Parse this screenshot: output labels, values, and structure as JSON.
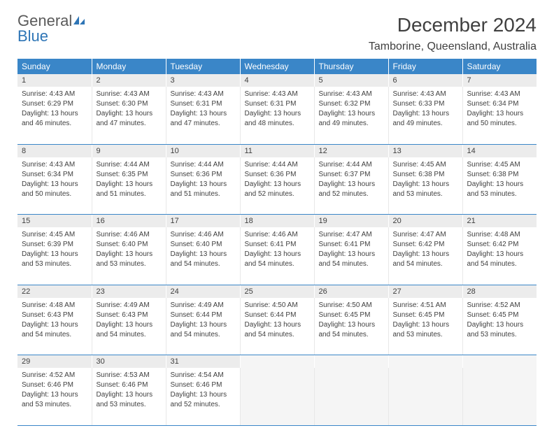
{
  "logo": {
    "general": "General",
    "blue": "Blue"
  },
  "title": "December 2024",
  "location": "Tamborine, Queensland, Australia",
  "day_headers": [
    "Sunday",
    "Monday",
    "Tuesday",
    "Wednesday",
    "Thursday",
    "Friday",
    "Saturday"
  ],
  "colors": {
    "header_bg": "#3a86c8",
    "header_text": "#ffffff",
    "daynum_bg": "#ececec",
    "cell_border": "#3a86c8",
    "text": "#404040",
    "logo_blue": "#2e75b6",
    "logo_gray": "#5a5a5a"
  },
  "weeks": [
    [
      {
        "n": "1",
        "sr": "4:43 AM",
        "ss": "6:29 PM",
        "dl": "13 hours and 46 minutes."
      },
      {
        "n": "2",
        "sr": "4:43 AM",
        "ss": "6:30 PM",
        "dl": "13 hours and 47 minutes."
      },
      {
        "n": "3",
        "sr": "4:43 AM",
        "ss": "6:31 PM",
        "dl": "13 hours and 47 minutes."
      },
      {
        "n": "4",
        "sr": "4:43 AM",
        "ss": "6:31 PM",
        "dl": "13 hours and 48 minutes."
      },
      {
        "n": "5",
        "sr": "4:43 AM",
        "ss": "6:32 PM",
        "dl": "13 hours and 49 minutes."
      },
      {
        "n": "6",
        "sr": "4:43 AM",
        "ss": "6:33 PM",
        "dl": "13 hours and 49 minutes."
      },
      {
        "n": "7",
        "sr": "4:43 AM",
        "ss": "6:34 PM",
        "dl": "13 hours and 50 minutes."
      }
    ],
    [
      {
        "n": "8",
        "sr": "4:43 AM",
        "ss": "6:34 PM",
        "dl": "13 hours and 50 minutes."
      },
      {
        "n": "9",
        "sr": "4:44 AM",
        "ss": "6:35 PM",
        "dl": "13 hours and 51 minutes."
      },
      {
        "n": "10",
        "sr": "4:44 AM",
        "ss": "6:36 PM",
        "dl": "13 hours and 51 minutes."
      },
      {
        "n": "11",
        "sr": "4:44 AM",
        "ss": "6:36 PM",
        "dl": "13 hours and 52 minutes."
      },
      {
        "n": "12",
        "sr": "4:44 AM",
        "ss": "6:37 PM",
        "dl": "13 hours and 52 minutes."
      },
      {
        "n": "13",
        "sr": "4:45 AM",
        "ss": "6:38 PM",
        "dl": "13 hours and 53 minutes."
      },
      {
        "n": "14",
        "sr": "4:45 AM",
        "ss": "6:38 PM",
        "dl": "13 hours and 53 minutes."
      }
    ],
    [
      {
        "n": "15",
        "sr": "4:45 AM",
        "ss": "6:39 PM",
        "dl": "13 hours and 53 minutes."
      },
      {
        "n": "16",
        "sr": "4:46 AM",
        "ss": "6:40 PM",
        "dl": "13 hours and 53 minutes."
      },
      {
        "n": "17",
        "sr": "4:46 AM",
        "ss": "6:40 PM",
        "dl": "13 hours and 54 minutes."
      },
      {
        "n": "18",
        "sr": "4:46 AM",
        "ss": "6:41 PM",
        "dl": "13 hours and 54 minutes."
      },
      {
        "n": "19",
        "sr": "4:47 AM",
        "ss": "6:41 PM",
        "dl": "13 hours and 54 minutes."
      },
      {
        "n": "20",
        "sr": "4:47 AM",
        "ss": "6:42 PM",
        "dl": "13 hours and 54 minutes."
      },
      {
        "n": "21",
        "sr": "4:48 AM",
        "ss": "6:42 PM",
        "dl": "13 hours and 54 minutes."
      }
    ],
    [
      {
        "n": "22",
        "sr": "4:48 AM",
        "ss": "6:43 PM",
        "dl": "13 hours and 54 minutes."
      },
      {
        "n": "23",
        "sr": "4:49 AM",
        "ss": "6:43 PM",
        "dl": "13 hours and 54 minutes."
      },
      {
        "n": "24",
        "sr": "4:49 AM",
        "ss": "6:44 PM",
        "dl": "13 hours and 54 minutes."
      },
      {
        "n": "25",
        "sr": "4:50 AM",
        "ss": "6:44 PM",
        "dl": "13 hours and 54 minutes."
      },
      {
        "n": "26",
        "sr": "4:50 AM",
        "ss": "6:45 PM",
        "dl": "13 hours and 54 minutes."
      },
      {
        "n": "27",
        "sr": "4:51 AM",
        "ss": "6:45 PM",
        "dl": "13 hours and 53 minutes."
      },
      {
        "n": "28",
        "sr": "4:52 AM",
        "ss": "6:45 PM",
        "dl": "13 hours and 53 minutes."
      }
    ],
    [
      {
        "n": "29",
        "sr": "4:52 AM",
        "ss": "6:46 PM",
        "dl": "13 hours and 53 minutes."
      },
      {
        "n": "30",
        "sr": "4:53 AM",
        "ss": "6:46 PM",
        "dl": "13 hours and 53 minutes."
      },
      {
        "n": "31",
        "sr": "4:54 AM",
        "ss": "6:46 PM",
        "dl": "13 hours and 52 minutes."
      },
      null,
      null,
      null,
      null
    ]
  ],
  "labels": {
    "sunrise": "Sunrise:",
    "sunset": "Sunset:",
    "daylight": "Daylight:"
  }
}
